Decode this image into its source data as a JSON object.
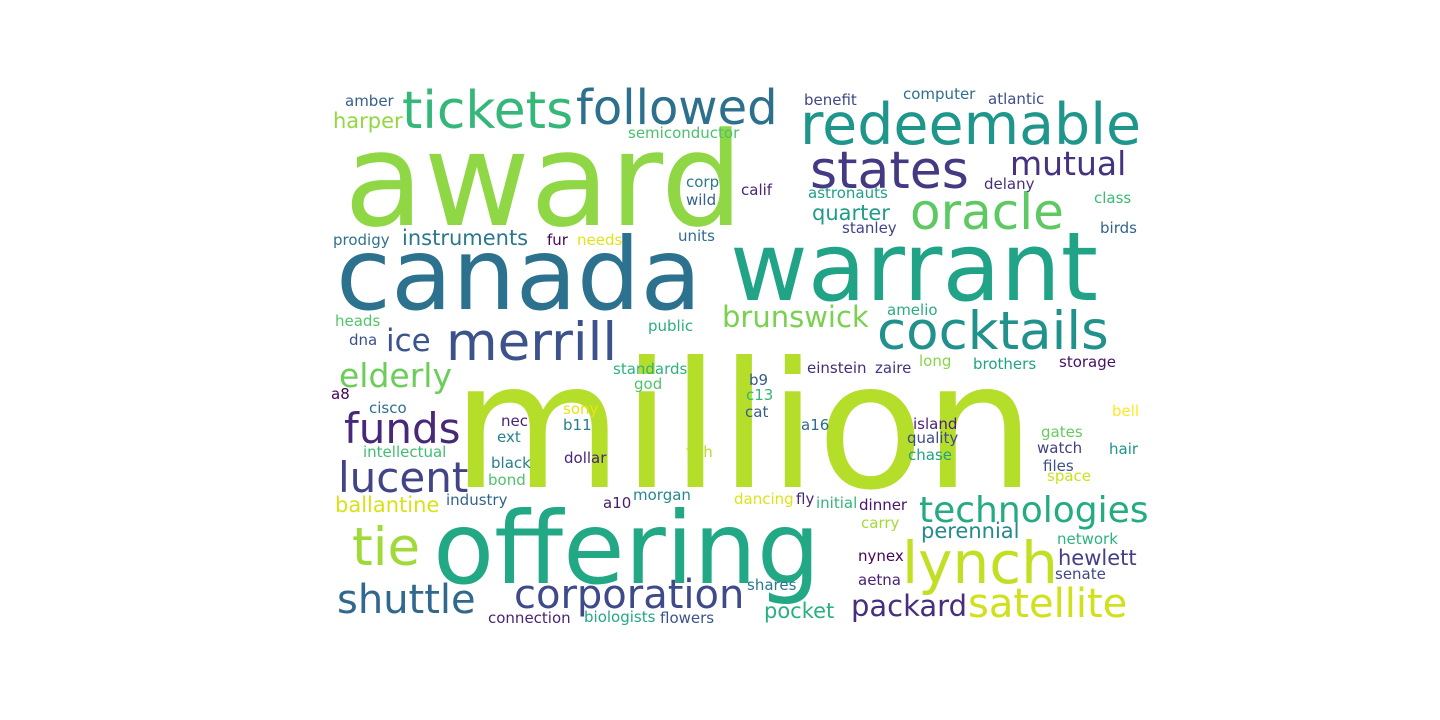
{
  "word_cloud": {
    "words": [
      {
        "text": "award",
        "color": "#8fd744"
      },
      {
        "text": "million",
        "color": "#b5de2b"
      },
      {
        "text": "offering",
        "color": "#22a884"
      },
      {
        "text": "canada",
        "color": "#2c728e"
      },
      {
        "text": "warrant",
        "color": "#20a386"
      },
      {
        "text": "redeemable",
        "color": "#1f968b"
      },
      {
        "text": "tickets",
        "color": "#35b779"
      },
      {
        "text": "followed",
        "color": "#2d708e"
      },
      {
        "text": "states",
        "color": "#443a83"
      },
      {
        "text": "oracle",
        "color": "#5ec962"
      },
      {
        "text": "cocktails",
        "color": "#21918c"
      },
      {
        "text": "merrill",
        "color": "#3b528b"
      },
      {
        "text": "lynch",
        "color": "#c2df23"
      },
      {
        "text": "funds",
        "color": "#482878"
      },
      {
        "text": "lucent",
        "color": "#414487"
      },
      {
        "text": "tie",
        "color": "#a0da39"
      },
      {
        "text": "corporation",
        "color": "#3e4a89"
      },
      {
        "text": "technologies",
        "color": "#25ab82"
      },
      {
        "text": "shuttle",
        "color": "#31688e"
      },
      {
        "text": "satellite",
        "color": "#d0e11c"
      },
      {
        "text": "mutual",
        "color": "#46327e"
      },
      {
        "text": "elderly",
        "color": "#6ccd5a"
      },
      {
        "text": "ice",
        "color": "#3a548c"
      },
      {
        "text": "brunswick",
        "color": "#7ad151"
      },
      {
        "text": "packard",
        "color": "#472d7b"
      },
      {
        "text": "quarter",
        "color": "#1e9c89"
      },
      {
        "text": "instruments",
        "color": "#2a788e"
      },
      {
        "text": "harper",
        "color": "#93d741"
      },
      {
        "text": "ballantine",
        "color": "#d8e219"
      },
      {
        "text": "hewlett",
        "color": "#433e85"
      },
      {
        "text": "perennial",
        "color": "#238a8d"
      },
      {
        "text": "pocket",
        "color": "#2ab07f"
      },
      {
        "text": "amber",
        "color": "#355f8d"
      },
      {
        "text": "benefit",
        "color": "#3f4889"
      },
      {
        "text": "computer",
        "color": "#2e6e8e"
      },
      {
        "text": "atlantic",
        "color": "#3d4e8a"
      },
      {
        "text": "semiconductor",
        "color": "#4ac16d"
      },
      {
        "text": "corp",
        "color": "#297b8e"
      },
      {
        "text": "calif",
        "color": "#482576"
      },
      {
        "text": "astronauts",
        "color": "#1fa088"
      },
      {
        "text": "delany",
        "color": "#46307e"
      },
      {
        "text": "class",
        "color": "#3bbb75"
      },
      {
        "text": "wild",
        "color": "#34618d"
      },
      {
        "text": "stanley",
        "color": "#404588"
      },
      {
        "text": "birds",
        "color": "#33638d"
      },
      {
        "text": "prodigy",
        "color": "#2c738e"
      },
      {
        "text": "fur",
        "color": "#450559"
      },
      {
        "text": "needs",
        "color": "#e2e418"
      },
      {
        "text": "units",
        "color": "#306a8e"
      },
      {
        "text": "amelio",
        "color": "#27ad81"
      },
      {
        "text": "heads",
        "color": "#52c569"
      },
      {
        "text": "public",
        "color": "#29af7f"
      },
      {
        "text": "dna",
        "color": "#3b518b"
      },
      {
        "text": "long",
        "color": "#86d549"
      },
      {
        "text": "brothers",
        "color": "#1fa287"
      },
      {
        "text": "storage",
        "color": "#471063"
      },
      {
        "text": "einstein",
        "color": "#472c7a"
      },
      {
        "text": "zaire",
        "color": "#46337f"
      },
      {
        "text": "standards",
        "color": "#2db27d"
      },
      {
        "text": "god",
        "color": "#52c569"
      },
      {
        "text": "b9",
        "color": "#365c8d"
      },
      {
        "text": "a8",
        "color": "#440154"
      },
      {
        "text": "c13",
        "color": "#34b679"
      },
      {
        "text": "cisco",
        "color": "#2c728e"
      },
      {
        "text": "sony",
        "color": "#e5e419"
      },
      {
        "text": "bell",
        "color": "#fde725"
      },
      {
        "text": "cat",
        "color": "#355e8d"
      },
      {
        "text": "nec",
        "color": "#482374"
      },
      {
        "text": "b11",
        "color": "#287d8e"
      },
      {
        "text": "a16",
        "color": "#2f6b8e"
      },
      {
        "text": "island",
        "color": "#481f70"
      },
      {
        "text": "ext",
        "color": "#26828e"
      },
      {
        "text": "quality",
        "color": "#3e4c8a"
      },
      {
        "text": "gates",
        "color": "#65cb5e"
      },
      {
        "text": "intellectual",
        "color": "#40bd72"
      },
      {
        "text": "chase",
        "color": "#1fa188"
      },
      {
        "text": "watch",
        "color": "#424086"
      },
      {
        "text": "hair",
        "color": "#20928c"
      },
      {
        "text": "black",
        "color": "#277f8e"
      },
      {
        "text": "dollar",
        "color": "#482576"
      },
      {
        "text": "fish",
        "color": "#b5de2b"
      },
      {
        "text": "files",
        "color": "#3c508b"
      },
      {
        "text": "bond",
        "color": "#4ec36b"
      },
      {
        "text": "space",
        "color": "#cae11f"
      },
      {
        "text": "industry",
        "color": "#33638d"
      },
      {
        "text": "a10",
        "color": "#481b6d"
      },
      {
        "text": "morgan",
        "color": "#238a8d"
      },
      {
        "text": "dancing",
        "color": "#dde318"
      },
      {
        "text": "fly",
        "color": "#482878"
      },
      {
        "text": "initial",
        "color": "#32b67a"
      },
      {
        "text": "dinner",
        "color": "#481467"
      },
      {
        "text": "carry",
        "color": "#a2da37"
      },
      {
        "text": "network",
        "color": "#2eb37c"
      },
      {
        "text": "nynex",
        "color": "#450457"
      },
      {
        "text": "senate",
        "color": "#3f4788"
      },
      {
        "text": "aetna",
        "color": "#482173"
      },
      {
        "text": "shares",
        "color": "#2a788e"
      },
      {
        "text": "connection",
        "color": "#482475"
      },
      {
        "text": "biologists",
        "color": "#22a785"
      },
      {
        "text": "flowers",
        "color": "#3a538b"
      }
    ]
  }
}
